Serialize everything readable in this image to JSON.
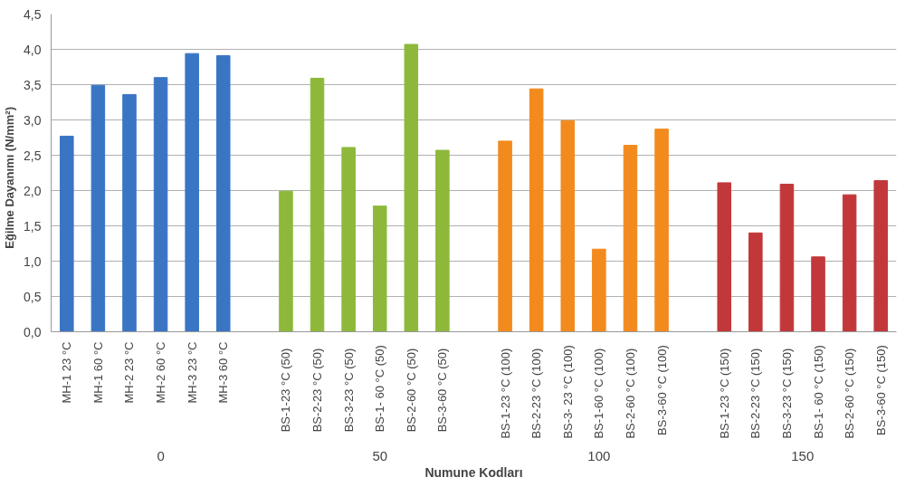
{
  "chart_data": {
    "type": "bar",
    "xlabel": "Numune Kodları",
    "ylabel": "Eğilme Dayanımı    (N/mm²)",
    "categories": [
      "MH-1 23 °C",
      "MH-1 60 °C",
      "MH-2 23 °C",
      "MH-2 60 °C",
      "MH-3 23 °C",
      "MH-3 60 °C",
      null,
      "BS-1-23 °C   (50)",
      "BS-2-23 °C   (50)",
      "BS-3-23 °C   (50)",
      "BS-1- 60 °C  (50)",
      "BS-2-60 °C   (50)",
      "BS-3-60 °C   (50)",
      null,
      "BS-1-23 °C   (100)",
      "BS-2-23 °C   (100)",
      "BS-3- 23 °C  (100)",
      "BS-1-60 °C   (100)",
      "BS-2-60 °C   (100)",
      "BS-3-60 °C  (100)",
      null,
      "BS-1-23 °C   (150)",
      "BS-2-23 °C   (150)",
      "BS-3-23 °C   (150)",
      "BS-1- 60 °C  (150)",
      "BS-2-60 °C   (150)",
      "BS-3-60 °C  (150)"
    ],
    "series": [
      {
        "color": "#3a75c4",
        "values": [
          2.77,
          3.49,
          3.36,
          3.6,
          3.94,
          3.91,
          null,
          null,
          null,
          null,
          null,
          null,
          null,
          null,
          null,
          null,
          null,
          null,
          null,
          null,
          null,
          null,
          null,
          null,
          null,
          null,
          null
        ]
      },
      {
        "color": "#8db83a",
        "values": [
          null,
          null,
          null,
          null,
          null,
          null,
          null,
          1.99,
          3.59,
          2.61,
          1.78,
          4.07,
          2.57,
          null,
          null,
          null,
          null,
          null,
          null,
          null,
          null,
          null,
          null,
          null,
          null,
          null,
          null
        ]
      },
      {
        "color": "#f28a1d",
        "values": [
          null,
          null,
          null,
          null,
          null,
          null,
          null,
          null,
          null,
          null,
          null,
          null,
          null,
          null,
          2.7,
          3.44,
          2.99,
          1.17,
          2.64,
          2.87,
          null,
          null,
          null,
          null,
          null,
          null,
          null
        ]
      },
      {
        "color": "#c2383a",
        "values": [
          null,
          null,
          null,
          null,
          null,
          null,
          null,
          null,
          null,
          null,
          null,
          null,
          null,
          null,
          null,
          null,
          null,
          null,
          null,
          null,
          null,
          2.11,
          1.4,
          2.09,
          1.06,
          1.94,
          2.14
        ]
      }
    ],
    "annotations": [
      "0",
      "50",
      "100",
      "150"
    ],
    "ylim": [
      0,
      4.5
    ],
    "yticks": [
      {
        "value": 0,
        "label": "0,0"
      },
      {
        "value": 0.5,
        "label": "0,5"
      },
      {
        "value": 1,
        "label": "1,0"
      },
      {
        "value": 1.5,
        "label": "1,5"
      },
      {
        "value": 2,
        "label": "2,0"
      },
      {
        "value": 2.5,
        "label": "2,5"
      },
      {
        "value": 3,
        "label": "3,0"
      },
      {
        "value": 3.5,
        "label": "3,5"
      },
      {
        "value": 4,
        "label": "4,0"
      },
      {
        "value": 4.5,
        "label": "4,5"
      }
    ],
    "grid": "y"
  }
}
